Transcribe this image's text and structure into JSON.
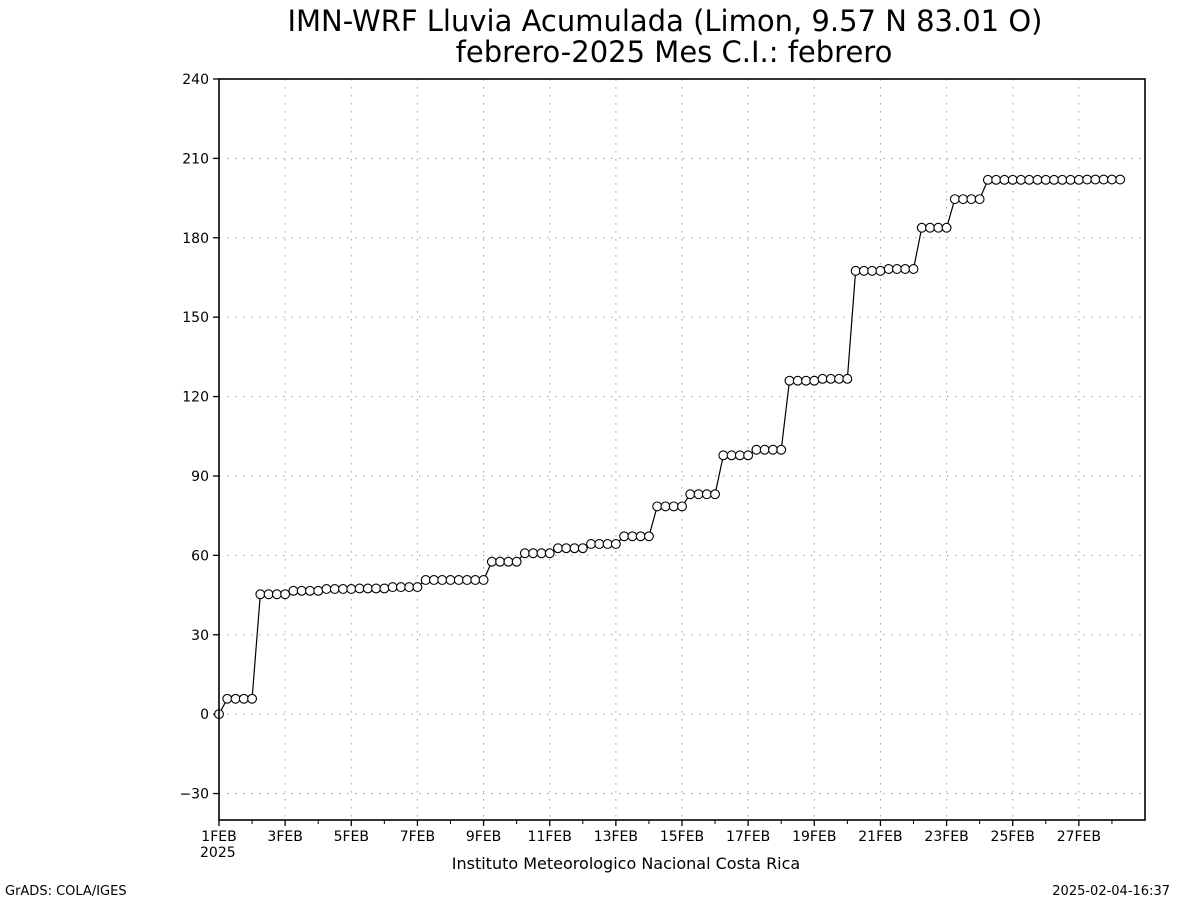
{
  "chart_data": {
    "type": "line",
    "title": "IMN-WRF  Lluvia Acumulada (Limon, 9.57  N 83.01  O)",
    "subtitle": "febrero-2025 Mes C.I.: febrero",
    "credit": "Instituto Meteorologico Nacional Costa Rica",
    "footer_left": "GrADS: COLA/IGES",
    "footer_right": "2025-02-04-16:37",
    "x_year_label": "2025",
    "ylim": [
      -40,
      240
    ],
    "y_ticks": [
      -30,
      0,
      30,
      60,
      90,
      120,
      150,
      180,
      210,
      240
    ],
    "x_range_days": [
      1,
      29
    ],
    "x_ticks": [
      {
        "day": 1,
        "label": "1FEB"
      },
      {
        "day": 3,
        "label": "3FEB"
      },
      {
        "day": 5,
        "label": "5FEB"
      },
      {
        "day": 7,
        "label": "7FEB"
      },
      {
        "day": 9,
        "label": "9FEB"
      },
      {
        "day": 11,
        "label": "11FEB"
      },
      {
        "day": 13,
        "label": "13FEB"
      },
      {
        "day": 15,
        "label": "15FEB"
      },
      {
        "day": 17,
        "label": "17FEB"
      },
      {
        "day": 19,
        "label": "19FEB"
      },
      {
        "day": 21,
        "label": "21FEB"
      },
      {
        "day": 23,
        "label": "23FEB"
      },
      {
        "day": 25,
        "label": "25FEB"
      },
      {
        "day": 27,
        "label": "27FEB"
      }
    ],
    "grid": true,
    "marker": "open-circle",
    "series": [
      {
        "day_start": 1,
        "step_hours": 6,
        "values": [
          0,
          5.8,
          5.8,
          5.8,
          5.8,
          45.3,
          45.3,
          45.3,
          45.3,
          46.6,
          46.6,
          46.6,
          46.6,
          47.3,
          47.3,
          47.3,
          47.3,
          47.5,
          47.5,
          47.5,
          47.5,
          48.0,
          48.0,
          48.0,
          48.0,
          50.7,
          50.7,
          50.7,
          50.7,
          50.7,
          50.7,
          50.7,
          50.7,
          57.6,
          57.6,
          57.6,
          57.6,
          60.8,
          60.8,
          60.8,
          60.8,
          62.7,
          62.7,
          62.7,
          62.7,
          64.3,
          64.3,
          64.3,
          64.3,
          67.2,
          67.2,
          67.2,
          67.2,
          78.5,
          78.5,
          78.5,
          78.5,
          83.1,
          83.1,
          83.1,
          83.1,
          97.8,
          97.8,
          97.8,
          97.8,
          99.9,
          99.9,
          99.9,
          99.9,
          126.0,
          126.0,
          126.0,
          126.0,
          126.7,
          126.7,
          126.7,
          126.7,
          167.5,
          167.5,
          167.5,
          167.5,
          168.2,
          168.2,
          168.2,
          168.2,
          183.8,
          183.8,
          183.8,
          183.8,
          194.6,
          194.6,
          194.6,
          194.6,
          201.9,
          201.9,
          201.9,
          201.9,
          201.9,
          201.9,
          201.9,
          201.9,
          201.9,
          201.9,
          201.9,
          201.9,
          202.0,
          202.0,
          202.0,
          202.0,
          202.0
        ]
      }
    ]
  }
}
